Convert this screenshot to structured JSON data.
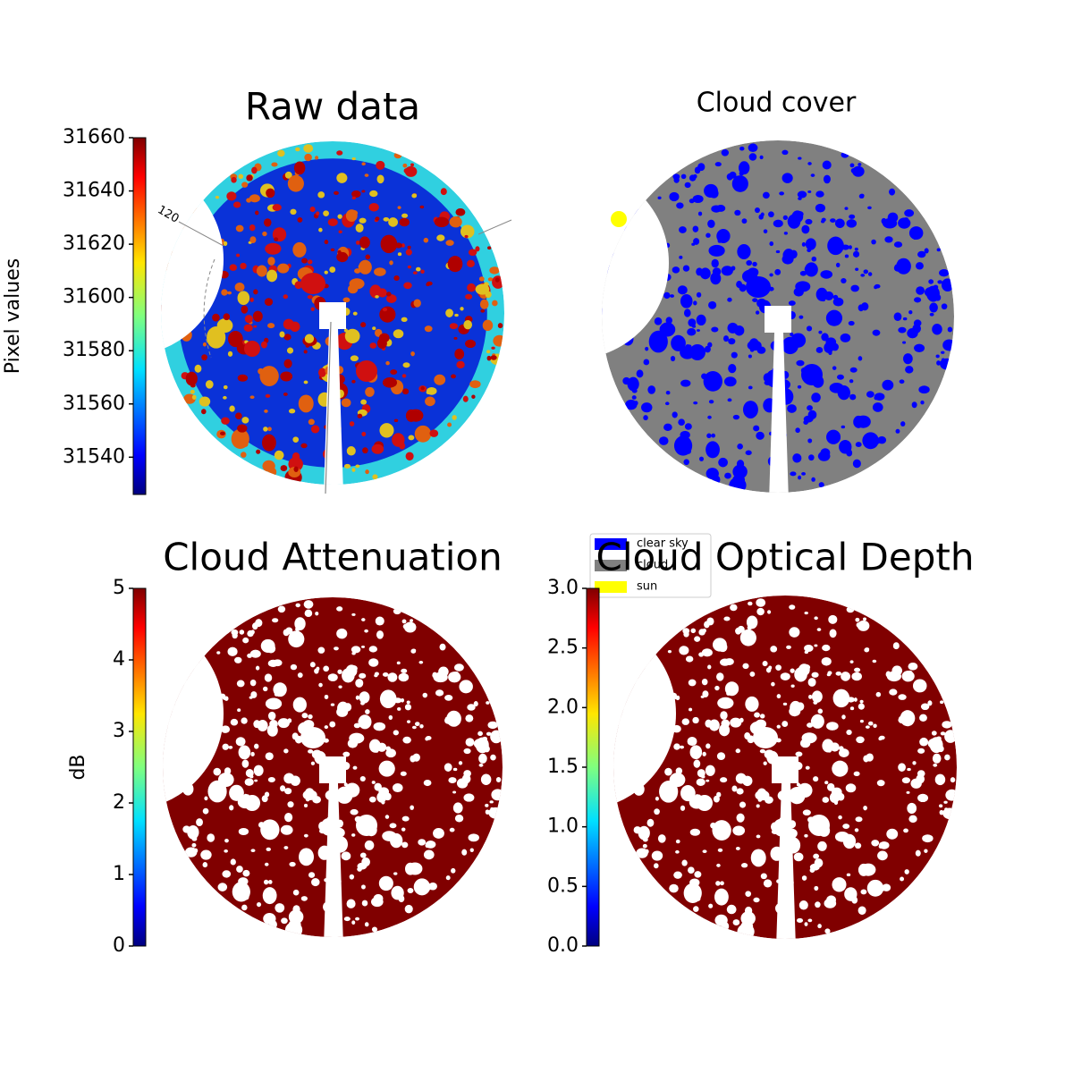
{
  "chart_data": [
    {
      "type": "image",
      "title": "Raw data",
      "colorbar_label": "Pixel values",
      "annotation": "120",
      "ylim": [
        31526,
        31660
      ],
      "yticks": [
        31540,
        31560,
        31580,
        31600,
        31620,
        31640,
        31660
      ]
    },
    {
      "type": "image",
      "title": "Cloud cover",
      "series": [
        {
          "name": "clear sky",
          "color": "#0000ff"
        },
        {
          "name": "cloud",
          "color": "#808080"
        },
        {
          "name": "sun",
          "color": "#ffff00"
        }
      ]
    },
    {
      "type": "image",
      "title": "Cloud Attenuation",
      "colorbar_label": "dB",
      "ylim": [
        0,
        5
      ],
      "yticks": [
        0,
        1,
        2,
        3,
        4,
        5
      ]
    },
    {
      "type": "image",
      "title": "Cloud Optical Depth",
      "ylim": [
        0,
        3
      ],
      "yticks": [
        {
          "value": 0,
          "label": "0.0"
        },
        {
          "value": 0.5,
          "label": "0.5"
        },
        {
          "value": 1,
          "label": "1.0"
        },
        {
          "value": 1.5,
          "label": "1.5"
        },
        {
          "value": 2,
          "label": "2.0"
        },
        {
          "value": 2.5,
          "label": "2.5"
        },
        {
          "value": 3,
          "label": "3.0"
        }
      ]
    }
  ]
}
